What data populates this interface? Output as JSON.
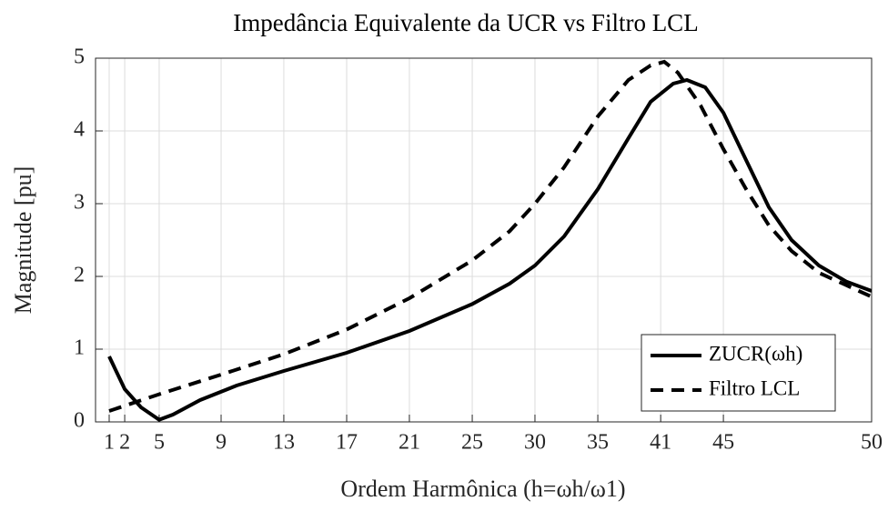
{
  "chart_data": {
    "type": "line",
    "title": "Impedância Equivalente da UCR vs Filtro LCL",
    "xlabel": "Ordem Harmônica (h=ωh/ω1)",
    "ylabel": "Magnitude [pu]",
    "xlim": [
      0,
      50
    ],
    "ylim": [
      0,
      5
    ],
    "xticks": [
      {
        "value": 0.88,
        "label": "1"
      },
      {
        "value": 1.88,
        "label": "2"
      },
      {
        "value": 4.1,
        "label": "5"
      },
      {
        "value": 8.09,
        "label": "9"
      },
      {
        "value": 12.13,
        "label": "13"
      },
      {
        "value": 16.18,
        "label": "17"
      },
      {
        "value": 20.22,
        "label": "21"
      },
      {
        "value": 24.27,
        "label": "25"
      },
      {
        "value": 28.31,
        "label": "30"
      },
      {
        "value": 32.36,
        "label": "35"
      },
      {
        "value": 36.41,
        "label": "41"
      },
      {
        "value": 40.45,
        "label": "45"
      },
      {
        "value": 50,
        "label": "50"
      }
    ],
    "yticks": [
      0,
      1,
      2,
      3,
      4,
      5
    ],
    "grid": true,
    "legend": "lower right",
    "series": [
      {
        "name": "ZUCR(ωh)",
        "color": "#000000",
        "dash": "solid",
        "x": [
          0.88,
          1.88,
          2.93,
          4.1,
          4.98,
          6.74,
          9.09,
          12.13,
          16.18,
          20.22,
          24.27,
          26.67,
          28.31,
          30.19,
          32.36,
          34.33,
          35.76,
          37.22,
          38.1,
          39.28,
          40.45,
          41.91,
          43.38,
          44.84,
          46.6,
          48.36,
          50
        ],
        "values": [
          0.9,
          0.45,
          0.2,
          0.03,
          0.1,
          0.3,
          0.5,
          0.7,
          0.95,
          1.25,
          1.62,
          1.9,
          2.15,
          2.55,
          3.2,
          3.9,
          4.4,
          4.65,
          4.7,
          4.6,
          4.25,
          3.6,
          2.95,
          2.5,
          2.15,
          1.93,
          1.8
        ]
      },
      {
        "name": "Filtro LCL",
        "color": "#000000",
        "dash": "dashed",
        "x": [
          0.88,
          4.1,
          8.09,
          12.13,
          16.18,
          20.22,
          24.27,
          26.67,
          28.31,
          30.19,
          32.36,
          34.33,
          35.76,
          36.64,
          37.52,
          38.98,
          40.45,
          41.91,
          43.38,
          44.84,
          46.6,
          48.36,
          50
        ],
        "values": [
          0.15,
          0.38,
          0.65,
          0.93,
          1.27,
          1.7,
          2.22,
          2.62,
          3.0,
          3.5,
          4.2,
          4.7,
          4.9,
          4.95,
          4.8,
          4.35,
          3.75,
          3.2,
          2.7,
          2.35,
          2.05,
          1.88,
          1.72
        ]
      }
    ]
  }
}
